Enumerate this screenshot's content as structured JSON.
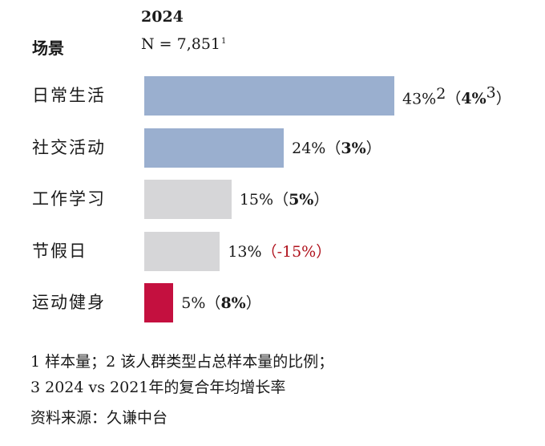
{
  "header": {
    "year": "2024",
    "column_title": "场景",
    "sample_size": "N = 7,851",
    "sample_note": "1"
  },
  "chart_data": {
    "type": "bar",
    "orientation": "horizontal",
    "categories": [
      "日常生活",
      "社交活动",
      "工作学习",
      "节假日",
      "运动健身"
    ],
    "values": [
      43,
      24,
      15,
      13,
      5
    ],
    "value_labels": [
      "43%",
      "24%",
      "15%",
      "13%",
      "5%"
    ],
    "value_label_notes": [
      "2",
      "",
      "",
      "",
      ""
    ],
    "growth_labels": [
      "4%",
      "3%",
      "5%",
      "-15%",
      "8%"
    ],
    "growth_label_notes": [
      "3",
      "",
      "",
      "",
      ""
    ],
    "colors": [
      "#9aafcf",
      "#9aafcf",
      "#d6d6d8",
      "#d6d6d8",
      "#c4103f"
    ],
    "growth_negative_color": "#b0121d",
    "xlim": [
      0,
      43
    ]
  },
  "footnotes": [
    "1 样本量；2 该人群类型占总样本量的比例；",
    "3 2024 vs 2021年的复合年均增长率",
    "资料来源：久谦中台"
  ]
}
